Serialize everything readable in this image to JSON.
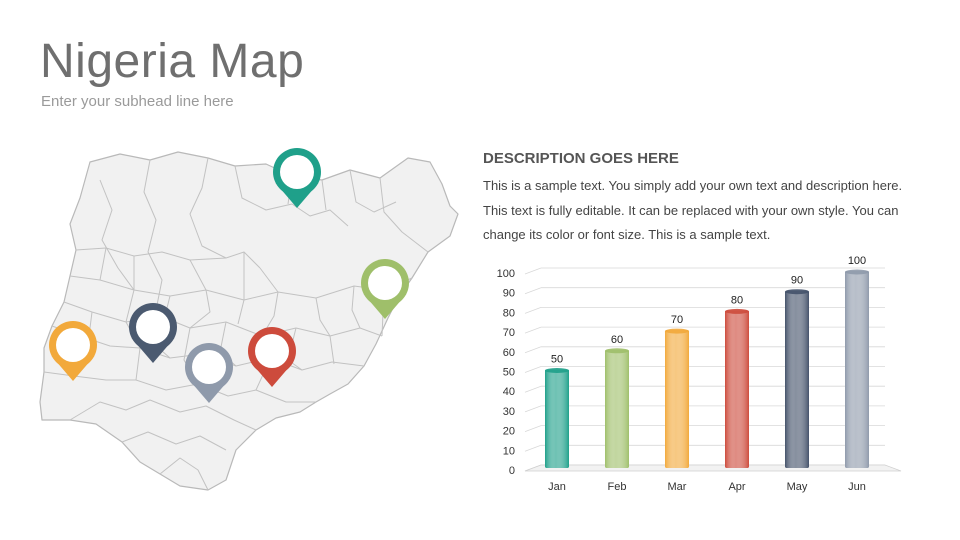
{
  "header": {
    "title": "Nigeria Map",
    "subhead": "Enter your subhead line here"
  },
  "description": {
    "heading": "DESCRIPTION GOES HERE",
    "body": "This is a sample text. You simply add your own text and description here. This text is fully editable. It can be replaced with your own style. You can change its color or font size. This is a sample text."
  },
  "map": {
    "pins": [
      {
        "name": "map-pin-teal",
        "color": "#1fa08a"
      },
      {
        "name": "map-pin-green",
        "color": "#9fbf6a"
      },
      {
        "name": "map-pin-orange",
        "color": "#f2a93b"
      },
      {
        "name": "map-pin-navy",
        "color": "#4b5a70"
      },
      {
        "name": "map-pin-gray",
        "color": "#8f9aab"
      },
      {
        "name": "map-pin-red",
        "color": "#cd4b3c"
      }
    ]
  },
  "chart_data": {
    "type": "bar",
    "categories": [
      "Jan",
      "Feb",
      "Mar",
      "Apr",
      "May",
      "Jun"
    ],
    "values": [
      50,
      60,
      70,
      80,
      90,
      100
    ],
    "colors": [
      "#1fa08a",
      "#9fbf6a",
      "#f2a93b",
      "#cd4b3c",
      "#44526a",
      "#8f9aab"
    ],
    "title": "",
    "xlabel": "",
    "ylabel": "",
    "ylim": [
      0,
      100
    ],
    "yticks": [
      0,
      10,
      20,
      30,
      40,
      50,
      60,
      70,
      80,
      90,
      100
    ],
    "grid": true,
    "data_labels": true
  }
}
